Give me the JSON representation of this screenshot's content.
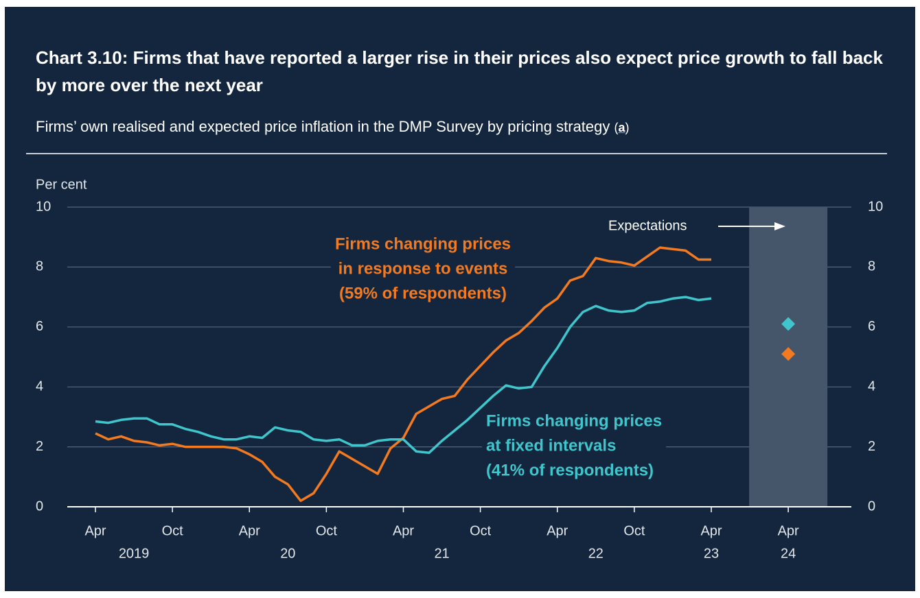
{
  "chart_data": {
    "type": "line",
    "title": "Chart 3.10: Firms that have reported a larger rise in their prices also expect price growth to fall back by more over the next year",
    "subtitle": "Firms’ own realised and expected price inflation in the DMP Survey by pricing strategy",
    "subtitle_note": [
      "(",
      "a",
      ")"
    ],
    "y_axis_label": "Per cent",
    "categories": [
      "Apr",
      null,
      null,
      null,
      null,
      null,
      "Oct",
      null,
      null,
      null,
      null,
      null,
      "Apr",
      null,
      null,
      null,
      null,
      null,
      "Oct",
      null,
      null,
      null,
      null,
      null,
      "Apr",
      null,
      null,
      null,
      null,
      null,
      "Oct",
      null,
      null,
      null,
      null,
      null,
      "Apr",
      null,
      null,
      null,
      null,
      null,
      "Oct",
      null,
      null,
      null,
      null,
      null,
      "Apr"
    ],
    "category_years": [
      "2019",
      null,
      null,
      null,
      null,
      null,
      null,
      null,
      null,
      null,
      null,
      null,
      "20",
      null,
      null,
      null,
      null,
      null,
      null,
      null,
      null,
      null,
      null,
      null,
      "21",
      null,
      null,
      null,
      null,
      null,
      null,
      null,
      null,
      null,
      null,
      null,
      "22",
      null,
      null,
      null,
      null,
      null,
      null,
      null,
      null,
      null,
      null,
      null,
      "23"
    ],
    "expectation": {
      "label": "Expectations",
      "category": "Apr",
      "year": "24"
    },
    "ylim": [
      0,
      10
    ],
    "yticks": [
      0,
      2,
      4,
      6,
      8,
      10
    ],
    "grid": true,
    "series": [
      {
        "name": [
          "Firms changing prices",
          "in response to events",
          "(59% of respondents)"
        ],
        "color": "#f47a20",
        "values": [
          2.45,
          2.25,
          2.35,
          2.2,
          2.15,
          2.05,
          2.1,
          2.0,
          2.0,
          2.0,
          2.0,
          1.95,
          1.75,
          1.5,
          1.0,
          0.75,
          0.2,
          0.45,
          1.1,
          1.85,
          1.6,
          1.35,
          1.1,
          1.95,
          2.3,
          3.1,
          3.35,
          3.6,
          3.7,
          4.25,
          4.7,
          5.15,
          5.55,
          5.8,
          6.2,
          6.65,
          6.95,
          7.55,
          7.7,
          8.3,
          8.2,
          8.15,
          8.05,
          8.35,
          8.65,
          8.6,
          8.55,
          8.25,
          8.25
        ],
        "expected": 5.1
      },
      {
        "name": [
          "Firms changing prices",
          "at fixed intervals",
          "(41% of respondents)"
        ],
        "color": "#3fc6cc",
        "values": [
          2.85,
          2.8,
          2.9,
          2.95,
          2.95,
          2.75,
          2.75,
          2.6,
          2.5,
          2.35,
          2.25,
          2.25,
          2.35,
          2.3,
          2.65,
          2.55,
          2.5,
          2.25,
          2.2,
          2.25,
          2.05,
          2.05,
          2.2,
          2.25,
          2.25,
          1.85,
          1.8,
          2.2,
          2.55,
          2.9,
          3.3,
          3.7,
          4.05,
          3.95,
          4.0,
          4.7,
          5.3,
          6.0,
          6.5,
          6.7,
          6.55,
          6.5,
          6.55,
          6.8,
          6.85,
          6.95,
          7.0,
          6.9,
          6.95
        ],
        "expected": 6.1
      }
    ]
  }
}
